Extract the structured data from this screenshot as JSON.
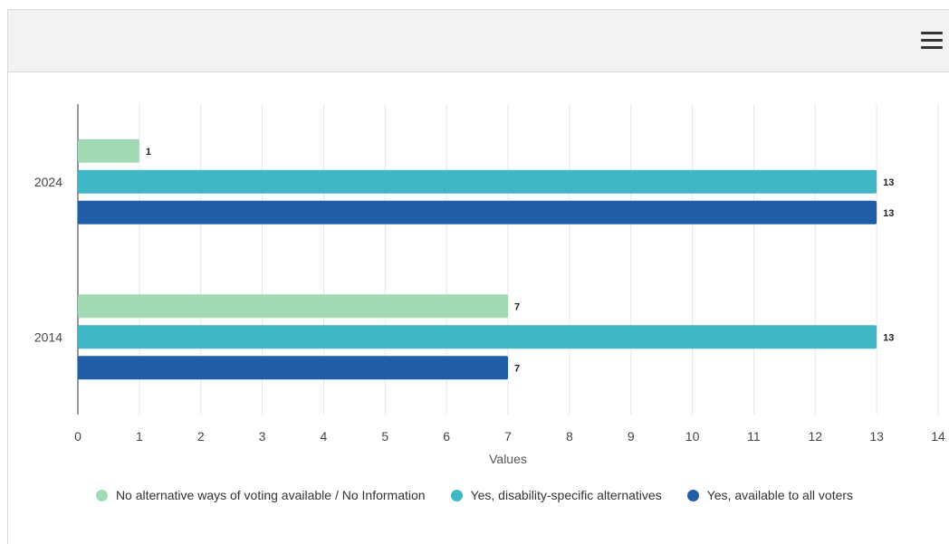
{
  "menu": {
    "icon": "hamburger-menu-icon"
  },
  "chart_data": {
    "type": "bar",
    "orientation": "horizontal",
    "categories": [
      "2024",
      "2014"
    ],
    "series": [
      {
        "name": "No alternative ways of voting available / No Information",
        "color": "#a1dab4",
        "values": [
          1,
          7
        ]
      },
      {
        "name": "Yes, disability-specific alternatives",
        "color": "#41b6c4",
        "values": [
          13,
          13
        ]
      },
      {
        "name": "Yes, available to all voters",
        "color": "#225ea8",
        "values": [
          13,
          7
        ]
      }
    ],
    "xlabel": "Values",
    "xlim": [
      0,
      14
    ],
    "xticks": [
      "0",
      "1",
      "2",
      "3",
      "4",
      "5",
      "6",
      "7",
      "8",
      "9",
      "10",
      "11",
      "12",
      "13",
      "14"
    ],
    "grid": true,
    "legend_position": "bottom"
  }
}
